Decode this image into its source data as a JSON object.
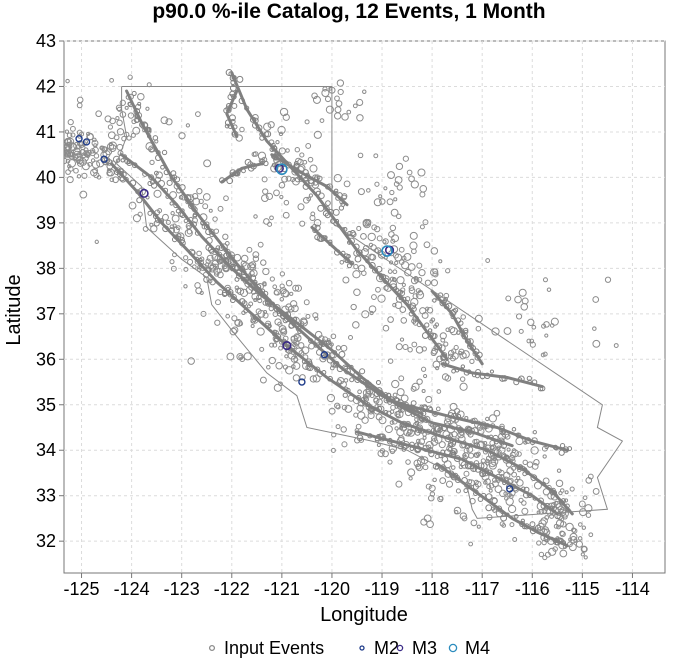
{
  "chart_data": {
    "type": "scatter",
    "title": "p90.0 %-ile Catalog, 12 Events, 1 Month",
    "xlabel": "Longitude",
    "ylabel": "Latitude",
    "xlim": [
      -125.35,
      -113.35
    ],
    "ylim": [
      31.3,
      43.0
    ],
    "xticks": [
      -125,
      -124,
      -123,
      -122,
      -121,
      -120,
      -119,
      -118,
      -117,
      -116,
      -115,
      -114
    ],
    "yticks": [
      32,
      33,
      34,
      35,
      36,
      37,
      38,
      39,
      40,
      41,
      42,
      43
    ],
    "xtick_labels": [
      "-125",
      "-124",
      "-123",
      "-122",
      "-121",
      "-120",
      "-119",
      "-118",
      "-117",
      "-116",
      "-115",
      "-114"
    ],
    "ytick_labels": [
      "32",
      "33",
      "34",
      "35",
      "36",
      "37",
      "38",
      "39",
      "40",
      "41",
      "42",
      "43"
    ],
    "grid": true,
    "legend_position": "bottom",
    "colors": {
      "input": "#8c8c8c",
      "faults": "#808080",
      "border": "#888888",
      "M2": "#1f3c8a",
      "M3": "#3a2a86",
      "M4": "#2b8cbe"
    },
    "series": [
      {
        "name": "Input Events",
        "clusters": [
          {
            "lon": -125.2,
            "lat": 40.6,
            "spread": 0.25,
            "n": 70
          },
          {
            "lon": -124.6,
            "lat": 40.4,
            "spread": 0.4,
            "n": 60
          },
          {
            "lon": -124.0,
            "lat": 41.3,
            "spread": 0.5,
            "n": 45
          },
          {
            "lon": -123.0,
            "lat": 39.2,
            "spread": 0.5,
            "n": 55
          },
          {
            "lon": -122.3,
            "lat": 38.0,
            "spread": 0.4,
            "n": 70
          },
          {
            "lon": -121.5,
            "lat": 37.2,
            "spread": 0.5,
            "n": 80
          },
          {
            "lon": -120.8,
            "lat": 36.3,
            "spread": 0.5,
            "n": 80
          },
          {
            "lon": -121.2,
            "lat": 40.5,
            "spread": 0.6,
            "n": 40
          },
          {
            "lon": -120.5,
            "lat": 39.6,
            "spread": 0.6,
            "n": 40
          },
          {
            "lon": -119.0,
            "lat": 38.5,
            "spread": 0.5,
            "n": 55
          },
          {
            "lon": -118.6,
            "lat": 37.6,
            "spread": 0.5,
            "n": 60
          },
          {
            "lon": -117.8,
            "lat": 36.2,
            "spread": 0.5,
            "n": 55
          },
          {
            "lon": -119.2,
            "lat": 35.1,
            "spread": 0.5,
            "n": 60
          },
          {
            "lon": -118.4,
            "lat": 34.3,
            "spread": 0.5,
            "n": 80
          },
          {
            "lon": -117.2,
            "lat": 34.1,
            "spread": 0.5,
            "n": 80
          },
          {
            "lon": -116.5,
            "lat": 33.6,
            "spread": 0.5,
            "n": 80
          },
          {
            "lon": -115.6,
            "lat": 32.8,
            "spread": 0.4,
            "n": 60
          },
          {
            "lon": -115.4,
            "lat": 32.0,
            "spread": 0.3,
            "n": 40
          },
          {
            "lon": -117.5,
            "lat": 33.0,
            "spread": 0.5,
            "n": 35
          },
          {
            "lon": -119.8,
            "lat": 41.7,
            "spread": 0.3,
            "n": 20
          },
          {
            "lon": -118.8,
            "lat": 39.7,
            "spread": 0.4,
            "n": 25
          },
          {
            "lon": -116.0,
            "lat": 36.8,
            "spread": 0.6,
            "n": 30
          }
        ]
      },
      {
        "name": "M2",
        "points": [
          [
            -125.05,
            40.85
          ],
          [
            -124.9,
            40.78
          ],
          [
            -124.55,
            40.4
          ],
          [
            -120.6,
            35.5
          ],
          [
            -120.15,
            36.1
          ],
          [
            -116.45,
            33.15
          ]
        ]
      },
      {
        "name": "M3",
        "points": [
          [
            -121.05,
            40.2
          ],
          [
            -120.9,
            36.3
          ],
          [
            -123.75,
            39.65
          ],
          [
            -118.85,
            38.4
          ]
        ]
      },
      {
        "name": "M4",
        "points": [
          [
            -118.9,
            38.38
          ],
          [
            -121.0,
            40.18
          ]
        ]
      }
    ],
    "legend": [
      {
        "label": "Input Events",
        "marker": "input"
      },
      {
        "label": "M2",
        "marker": "M2"
      },
      {
        "label": "M3",
        "marker": "M3"
      },
      {
        "label": "M4",
        "marker": "M4"
      }
    ],
    "faults": [
      [
        [
          -124.4,
          40.3
        ],
        [
          -123.9,
          39.7
        ],
        [
          -123.4,
          39.0
        ],
        [
          -122.8,
          38.3
        ],
        [
          -122.3,
          37.7
        ],
        [
          -121.6,
          37.0
        ],
        [
          -120.9,
          36.3
        ],
        [
          -120.1,
          35.6
        ],
        [
          -119.3,
          35.0
        ],
        [
          -118.6,
          34.6
        ],
        [
          -117.8,
          34.3
        ],
        [
          -116.9,
          34.0
        ],
        [
          -116.2,
          33.6
        ],
        [
          -115.6,
          33.1
        ],
        [
          -115.2,
          32.6
        ]
      ],
      [
        [
          -124.2,
          40.5
        ],
        [
          -123.6,
          40.0
        ],
        [
          -123.1,
          39.4
        ],
        [
          -122.6,
          38.7
        ],
        [
          -122.0,
          38.0
        ],
        [
          -121.4,
          37.4
        ],
        [
          -120.7,
          36.8
        ],
        [
          -120.0,
          36.2
        ],
        [
          -119.4,
          35.6
        ],
        [
          -118.7,
          35.0
        ],
        [
          -118.0,
          34.6
        ],
        [
          -117.2,
          34.4
        ],
        [
          -116.4,
          34.1
        ]
      ],
      [
        [
          -122.9,
          39.5
        ],
        [
          -122.4,
          38.8
        ],
        [
          -121.9,
          38.1
        ],
        [
          -121.5,
          37.6
        ],
        [
          -121.0,
          37.0
        ],
        [
          -120.4,
          36.4
        ],
        [
          -119.8,
          35.8
        ],
        [
          -119.0,
          35.2
        ],
        [
          -118.2,
          34.8
        ]
      ],
      [
        [
          -124.1,
          41.9
        ],
        [
          -123.8,
          41.2
        ],
        [
          -123.5,
          40.6
        ],
        [
          -123.2,
          40.0
        ],
        [
          -122.8,
          39.4
        ]
      ],
      [
        [
          -122.0,
          42.3
        ],
        [
          -121.7,
          41.5
        ],
        [
          -121.3,
          40.8
        ],
        [
          -120.8,
          40.2
        ],
        [
          -120.3,
          39.6
        ],
        [
          -119.9,
          39.0
        ],
        [
          -119.5,
          38.4
        ],
        [
          -119.0,
          37.8
        ],
        [
          -118.5,
          37.2
        ],
        [
          -118.1,
          36.6
        ],
        [
          -117.7,
          36.0
        ]
      ],
      [
        [
          -118.9,
          35.1
        ],
        [
          -118.2,
          34.9
        ],
        [
          -117.5,
          34.7
        ],
        [
          -116.7,
          34.5
        ],
        [
          -116.0,
          34.2
        ],
        [
          -115.3,
          34.0
        ]
      ],
      [
        [
          -119.5,
          34.4
        ],
        [
          -118.8,
          34.2
        ],
        [
          -118.1,
          34.0
        ],
        [
          -117.4,
          33.8
        ],
        [
          -116.7,
          33.4
        ],
        [
          -116.0,
          33.0
        ],
        [
          -115.5,
          32.6
        ]
      ],
      [
        [
          -117.9,
          33.7
        ],
        [
          -117.4,
          33.3
        ],
        [
          -116.9,
          32.9
        ],
        [
          -116.4,
          32.5
        ],
        [
          -115.9,
          32.2
        ],
        [
          -115.3,
          31.9
        ]
      ],
      [
        [
          -121.2,
          40.5
        ],
        [
          -120.6,
          40.1
        ],
        [
          -120.1,
          39.8
        ],
        [
          -119.7,
          39.4
        ]
      ],
      [
        [
          -122.2,
          39.9
        ],
        [
          -121.8,
          40.2
        ],
        [
          -121.4,
          40.3
        ]
      ],
      [
        [
          -117.8,
          35.9
        ],
        [
          -117.2,
          35.7
        ],
        [
          -116.5,
          35.6
        ],
        [
          -115.8,
          35.4
        ]
      ],
      [
        [
          -118.0,
          37.5
        ],
        [
          -117.6,
          37.0
        ],
        [
          -117.3,
          36.4
        ],
        [
          -117.0,
          35.9
        ]
      ],
      [
        [
          -120.4,
          38.9
        ],
        [
          -120.0,
          38.5
        ],
        [
          -119.6,
          38.1
        ]
      ],
      [
        [
          -121.9,
          41.9
        ],
        [
          -122.1,
          41.4
        ],
        [
          -121.9,
          40.9
        ]
      ]
    ],
    "state_border": [
      [
        -124.2,
        42.0
      ],
      [
        -120.0,
        42.0
      ],
      [
        -120.0,
        39.0
      ],
      [
        -114.6,
        35.0
      ],
      [
        -114.7,
        34.5
      ],
      [
        -114.2,
        34.2
      ],
      [
        -114.7,
        33.4
      ],
      [
        -114.5,
        32.7
      ],
      [
        -117.1,
        32.5
      ],
      [
        -117.2,
        32.7
      ],
      [
        -117.3,
        33.2
      ],
      [
        -117.8,
        33.6
      ],
      [
        -118.5,
        34.0
      ],
      [
        -119.2,
        34.2
      ],
      [
        -120.5,
        34.5
      ],
      [
        -120.7,
        35.2
      ],
      [
        -121.3,
        35.7
      ],
      [
        -121.9,
        36.5
      ],
      [
        -122.4,
        37.2
      ],
      [
        -122.5,
        37.8
      ],
      [
        -123.0,
        38.2
      ],
      [
        -123.7,
        38.9
      ],
      [
        -123.8,
        39.8
      ],
      [
        -124.3,
        40.3
      ],
      [
        -124.1,
        40.9
      ],
      [
        -124.2,
        41.5
      ],
      [
        -124.2,
        42.0
      ]
    ]
  }
}
